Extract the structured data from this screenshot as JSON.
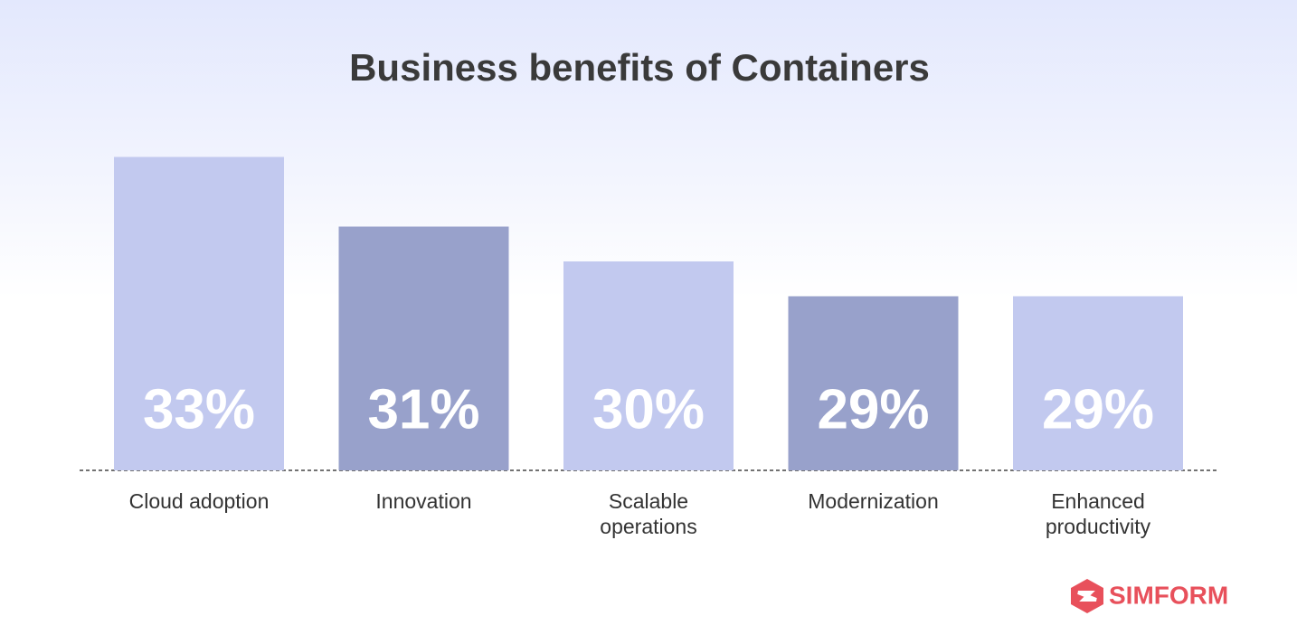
{
  "chart_data": {
    "type": "bar",
    "title": "Business benefits of Containers",
    "categories": [
      "Cloud adoption",
      "Innovation",
      "Scalable operations",
      "Modernization",
      "Enhanced productivity"
    ],
    "values": [
      33,
      31,
      30,
      29,
      29
    ],
    "value_labels": [
      "33%",
      "31%",
      "30%",
      "29%",
      "29%"
    ],
    "colors": [
      "#c2c9ef",
      "#98a1cb",
      "#c2c9ef",
      "#98a1cb",
      "#c2c9ef"
    ],
    "ylim": [
      24,
      34
    ]
  },
  "brand": "SIMFORM"
}
